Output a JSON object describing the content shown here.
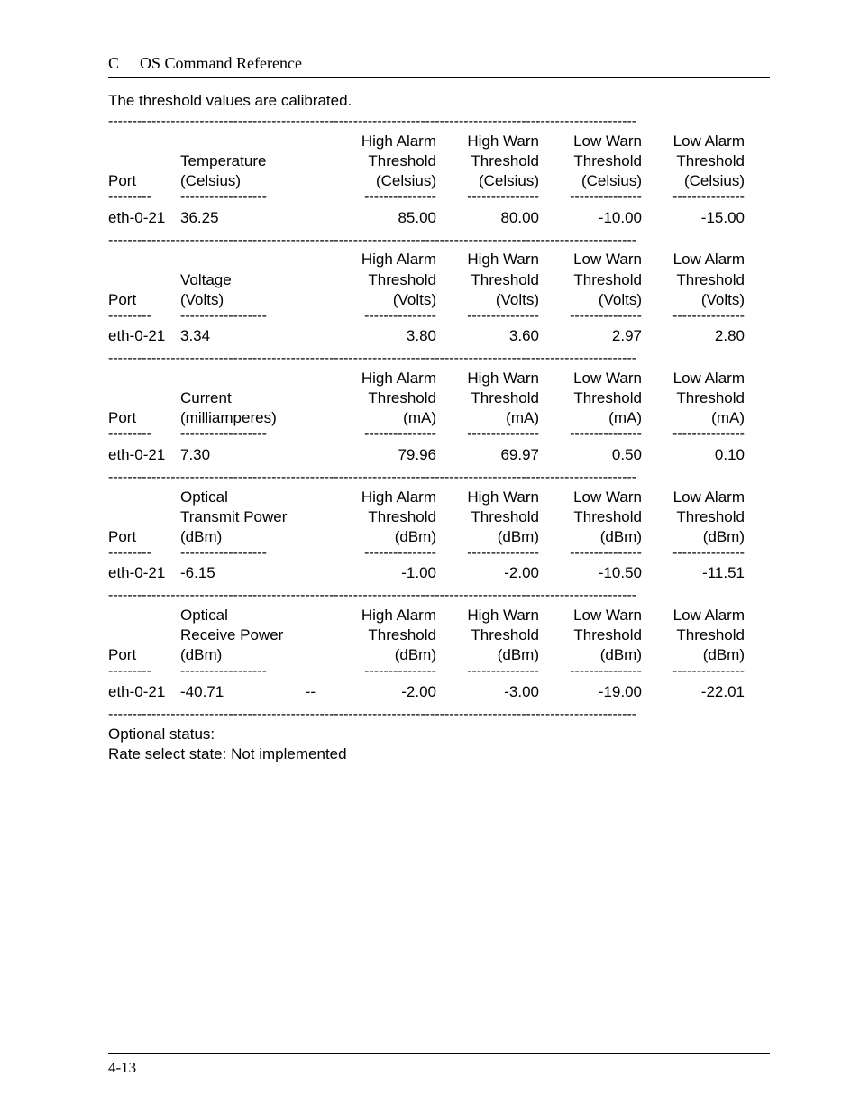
{
  "header": {
    "chapter": "C",
    "title": "OS Command Reference"
  },
  "intro": "The threshold values are calibrated.",
  "tables": [
    {
      "measure_lines": [
        "Temperature",
        "(Celsius)"
      ],
      "unit": "(Celsius)",
      "port": "eth-0-21",
      "value": "36.25",
      "high_alarm": "85.00",
      "high_warn": "80.00",
      "low_warn": "-10.00",
      "low_alarm": "-15.00",
      "extra": ""
    },
    {
      "measure_lines": [
        "Voltage",
        "(Volts)"
      ],
      "unit": "(Volts)",
      "port": "eth-0-21",
      "value": "3.34",
      "high_alarm": "3.80",
      "high_warn": "3.60",
      "low_warn": "2.97",
      "low_alarm": "2.80",
      "extra": ""
    },
    {
      "measure_lines": [
        "Current",
        "(milliamperes)"
      ],
      "unit": "(mA)",
      "port": "eth-0-21",
      "value": "7.30",
      "high_alarm": "79.96",
      "high_warn": "69.97",
      "low_warn": "0.50",
      "low_alarm": "0.10",
      "extra": ""
    },
    {
      "measure_lines": [
        "Optical",
        "Transmit Power",
        "(dBm)"
      ],
      "unit": "(dBm)",
      "port": "eth-0-21",
      "value": "-6.15",
      "high_alarm": "-1.00",
      "high_warn": "-2.00",
      "low_warn": "-10.50",
      "low_alarm": "-11.51",
      "extra": ""
    },
    {
      "measure_lines": [
        "Optical",
        "Receive Power",
        "(dBm)"
      ],
      "unit": "(dBm)",
      "port": "eth-0-21",
      "value": "-40.71",
      "high_alarm": "-2.00",
      "high_warn": "-3.00",
      "low_warn": "-19.00",
      "low_alarm": "-22.01",
      "extra": "--"
    }
  ],
  "labels": {
    "port": "Port",
    "high_alarm_l1": "High Alarm",
    "high_warn_l1": "High Warn",
    "low_warn_l1": "Low Warn",
    "low_alarm_l1": "Low Alarm",
    "threshold": "Threshold"
  },
  "footer_lines": [
    "Optional status:",
    "Rate select state: Not implemented"
  ],
  "dash_full": "--------------------------------------------------------------------------------------------------------------",
  "dash_port": "---------",
  "dash_meas": "------------------",
  "dash_th": "---------------",
  "page_number": "4-13"
}
